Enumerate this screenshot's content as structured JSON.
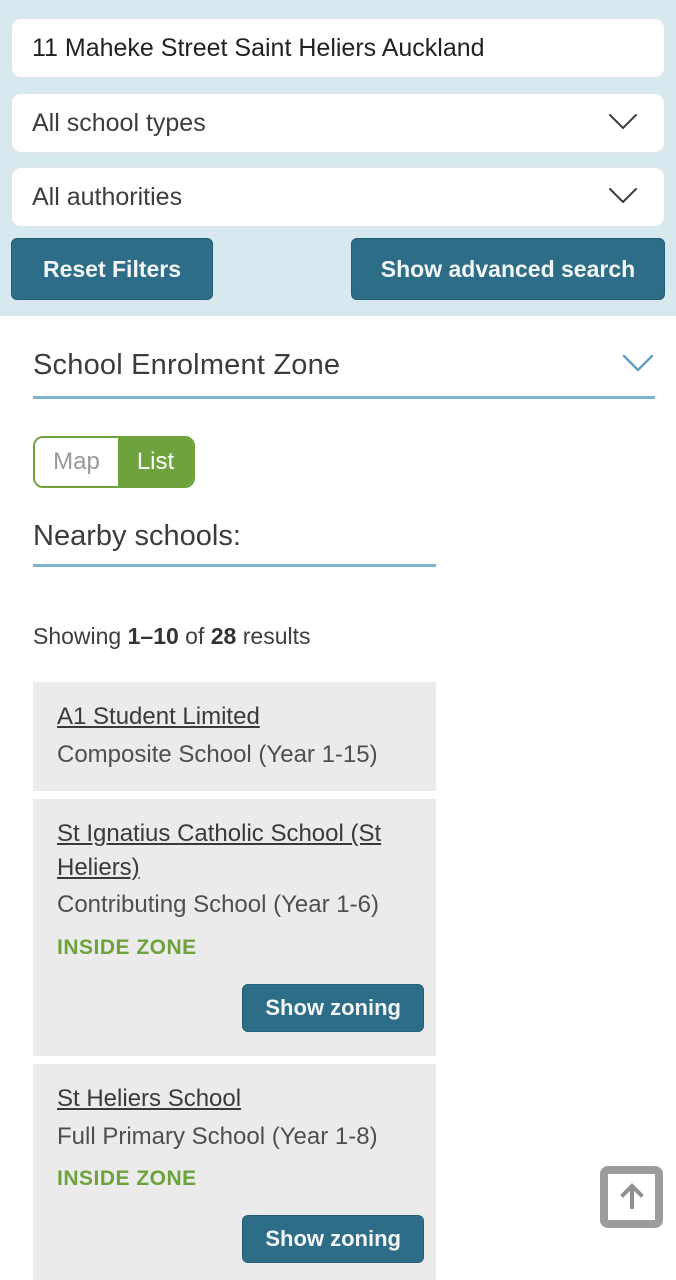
{
  "theme": {
    "panel_bg": "#d7e8ee",
    "accent_teal": "#2e6d87",
    "accent_green": "#6da23d",
    "underline_blue": "#7db5cc",
    "card_bg": "#ebebeb",
    "text_dark": "#3c3c3c"
  },
  "search": {
    "address_value": "11 Maheke Street Saint Heliers Auckland",
    "school_type_value": "All school types",
    "authority_value": "All authorities",
    "reset_label": "Reset Filters",
    "advanced_label": "Show advanced search"
  },
  "zone_section": {
    "title": "School Enrolment Zone",
    "collapse_icon": "chevron-down-icon"
  },
  "toggle": {
    "map_label": "Map",
    "list_label": "List",
    "active": "List"
  },
  "results": {
    "heading": "Nearby schools:",
    "summary_prefix": "Showing ",
    "range": "1–10",
    "of_text": " of ",
    "total": "28",
    "suffix": " results"
  },
  "schools": [
    {
      "name": "A1 Student Limited",
      "type": "Composite School (Year 1-15)",
      "zone_status": "",
      "zoning_button_label": ""
    },
    {
      "name": "St Ignatius Catholic School (St Heliers)",
      "type": "Contributing School (Year 1-6)",
      "zone_status": "INSIDE ZONE",
      "zoning_button_label": "Show zoning"
    },
    {
      "name": "St Heliers School",
      "type": "Full Primary School (Year 1-8)",
      "zone_status": "INSIDE ZONE",
      "zoning_button_label": "Show zoning"
    }
  ],
  "back_to_top": {
    "icon": "arrow-up-icon"
  }
}
